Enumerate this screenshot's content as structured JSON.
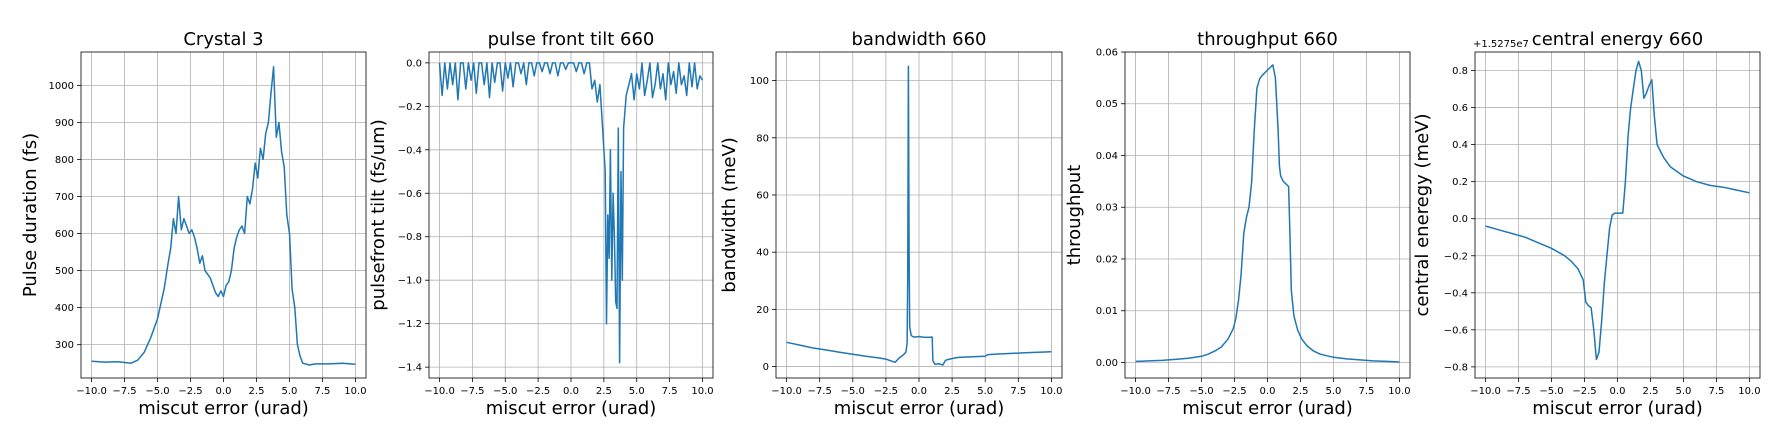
{
  "chart_data": [
    {
      "type": "line",
      "title": "Crystal 3",
      "xlabel": "miscut error (urad)",
      "ylabel": "Pulse duration (fs)",
      "xlim": [
        -10.8,
        10.8
      ],
      "ylim": [
        210,
        1090
      ],
      "xticks": [
        -10.0,
        -7.5,
        -5.0,
        -2.5,
        0.0,
        2.5,
        5.0,
        7.5,
        10.0
      ],
      "xtick_labels": [
        "−10.0",
        "−7.5",
        "−5.0",
        "−2.5",
        "0.0",
        "2.5",
        "5.0",
        "7.5",
        "10.0"
      ],
      "yticks": [
        300,
        400,
        500,
        600,
        700,
        800,
        900,
        1000
      ],
      "ytick_labels": [
        "300",
        "400",
        "500",
        "600",
        "700",
        "800",
        "900",
        "1000"
      ],
      "grid": true,
      "color": "#1f77b4",
      "series": [
        {
          "x": [
            -10,
            -9,
            -8,
            -7,
            -6.5,
            -6,
            -5.5,
            -5,
            -4.5,
            -4.2,
            -4,
            -3.8,
            -3.6,
            -3.4,
            -3.2,
            -3,
            -2.8,
            -2.6,
            -2.4,
            -2.2,
            -2,
            -1.8,
            -1.6,
            -1.4,
            -1.2,
            -1,
            -0.8,
            -0.6,
            -0.4,
            -0.2,
            0,
            0.2,
            0.4,
            0.6,
            0.8,
            1,
            1.2,
            1.4,
            1.6,
            1.8,
            2,
            2.2,
            2.4,
            2.6,
            2.8,
            3,
            3.2,
            3.4,
            3.6,
            3.8,
            3.9,
            4,
            4.2,
            4.4,
            4.6,
            4.8,
            5,
            5.2,
            5.4,
            5.6,
            5.8,
            6,
            6.5,
            7,
            8,
            9,
            10
          ],
          "y": [
            255,
            253,
            254,
            250,
            258,
            280,
            320,
            370,
            450,
            520,
            560,
            640,
            600,
            700,
            610,
            640,
            620,
            600,
            610,
            590,
            560,
            520,
            540,
            500,
            490,
            480,
            460,
            440,
            430,
            445,
            430,
            460,
            470,
            500,
            560,
            590,
            610,
            620,
            600,
            700,
            680,
            720,
            790,
            750,
            830,
            800,
            870,
            900,
            980,
            1050,
            950,
            860,
            900,
            820,
            780,
            650,
            600,
            450,
            400,
            300,
            270,
            250,
            245,
            248,
            248,
            250,
            247
          ]
        }
      ]
    },
    {
      "type": "line",
      "title": "pulse front tilt 660",
      "xlabel": "miscut error (urad)",
      "ylabel": "pulsefront tilt (fs/um)",
      "xlim": [
        -10.8,
        10.8
      ],
      "ylim": [
        -1.45,
        0.05
      ],
      "xticks": [
        -10.0,
        -7.5,
        -5.0,
        -2.5,
        0.0,
        2.5,
        5.0,
        7.5,
        10.0
      ],
      "xtick_labels": [
        "−10.0",
        "−7.5",
        "−5.0",
        "−2.5",
        "0.0",
        "2.5",
        "5.0",
        "7.5",
        "10.0"
      ],
      "yticks": [
        0.0,
        -0.2,
        -0.4,
        -0.6,
        -0.8,
        -1.0,
        -1.2,
        -1.4
      ],
      "ytick_labels": [
        "0.0",
        "−0.2",
        "−0.4",
        "−0.6",
        "−0.8",
        "−1.0",
        "−1.2",
        "−1.4"
      ],
      "grid": true,
      "color": "#1f77b4",
      "series": [
        {
          "x": [
            -10,
            -9.8,
            -9.6,
            -9.4,
            -9.2,
            -9,
            -8.8,
            -8.6,
            -8.4,
            -8.2,
            -8,
            -7.8,
            -7.6,
            -7.4,
            -7.2,
            -7,
            -6.8,
            -6.6,
            -6.4,
            -6.2,
            -6,
            -5.8,
            -5.6,
            -5.4,
            -5.2,
            -5,
            -4.8,
            -4.6,
            -4.4,
            -4.2,
            -4,
            -3.8,
            -3.6,
            -3.4,
            -3.2,
            -3,
            -2.8,
            -2.6,
            -2.4,
            -2.2,
            -2,
            -1.8,
            -1.6,
            -1.4,
            -1.2,
            -1,
            -0.8,
            -0.6,
            -0.4,
            -0.2,
            0,
            0.2,
            0.4,
            0.6,
            0.8,
            1,
            1.2,
            1.4,
            1.6,
            1.8,
            2,
            2.2,
            2.4,
            2.6,
            2.7,
            2.8,
            2.9,
            3,
            3.1,
            3.2,
            3.3,
            3.4,
            3.5,
            3.6,
            3.7,
            3.8,
            3.9,
            4,
            4.2,
            4.4,
            4.6,
            4.8,
            5,
            5.2,
            5.4,
            5.6,
            5.8,
            6,
            6.2,
            6.4,
            6.6,
            6.8,
            7,
            7.2,
            7.4,
            7.6,
            7.8,
            8,
            8.2,
            8.4,
            8.6,
            8.8,
            9,
            9.2,
            9.4,
            9.6,
            9.8,
            10
          ],
          "y": [
            0,
            -0.15,
            0,
            -0.12,
            0,
            -0.1,
            0,
            -0.17,
            0,
            0,
            -0.12,
            0,
            -0.08,
            0,
            -0.14,
            0,
            0,
            -0.1,
            0,
            -0.16,
            0,
            -0.09,
            0,
            0,
            -0.13,
            0,
            -0.07,
            0,
            -0.11,
            0,
            0,
            -0.05,
            0,
            -0.1,
            0,
            0,
            -0.06,
            0,
            0,
            -0.04,
            0,
            0,
            -0.05,
            0,
            0,
            -0.06,
            0,
            0,
            -0.03,
            0,
            0,
            0,
            -0.04,
            0,
            0,
            -0.05,
            0,
            0,
            -0.12,
            -0.08,
            -0.18,
            -0.1,
            -0.3,
            -0.5,
            -1.2,
            -0.7,
            -0.9,
            -0.4,
            -1.0,
            -0.6,
            -0.8,
            -1.1,
            -1.13,
            -0.3,
            -1.38,
            -0.5,
            -1.0,
            -0.3,
            -0.15,
            -0.1,
            -0.05,
            -0.17,
            -0.05,
            -0.12,
            0,
            -0.15,
            -0.08,
            0,
            -0.16,
            -0.1,
            0,
            -0.12,
            -0.05,
            -0.17,
            0,
            -0.1,
            -0.04,
            -0.14,
            0,
            -0.1,
            -0.06,
            -0.15,
            0,
            -0.11,
            0,
            -0.12,
            -0.06,
            -0.08
          ]
        }
      ]
    },
    {
      "type": "line",
      "title": "bandwidth 660",
      "xlabel": "miscut error (urad)",
      "ylabel": "bandwidth (meV)",
      "xlim": [
        -10.8,
        10.8
      ],
      "ylim": [
        -4,
        110
      ],
      "xticks": [
        -10.0,
        -7.5,
        -5.0,
        -2.5,
        0.0,
        2.5,
        5.0,
        7.5,
        10.0
      ],
      "xtick_labels": [
        "−10.0",
        "−7.5",
        "−5.0",
        "−2.5",
        "0.0",
        "2.5",
        "5.0",
        "7.5",
        "10.0"
      ],
      "yticks": [
        0,
        20,
        40,
        60,
        80,
        100
      ],
      "ytick_labels": [
        "0",
        "20",
        "40",
        "60",
        "80",
        "100"
      ],
      "grid": true,
      "color": "#1f77b4",
      "series": [
        {
          "x": [
            -10,
            -9,
            -8,
            -7,
            -6,
            -5,
            -4,
            -3,
            -2.5,
            -2,
            -1.8,
            -1.5,
            -1.2,
            -1,
            -0.9,
            -0.85,
            -0.8,
            -0.75,
            -0.7,
            -0.6,
            -0.5,
            -0.3,
            0,
            0.3,
            0.6,
            1,
            1.05,
            1.2,
            1.5,
            1.8,
            2,
            2.3,
            2.6,
            3,
            4,
            5,
            5.2,
            6,
            7,
            8,
            9,
            10
          ],
          "y": [
            8.5,
            7.5,
            6.5,
            5.8,
            5,
            4.3,
            3.6,
            3,
            2.6,
            1.8,
            1.5,
            3,
            4,
            5,
            8,
            30,
            105,
            40,
            14,
            11,
            10.5,
            10.3,
            10.5,
            10.3,
            10.2,
            10.3,
            2,
            0.8,
            1,
            0.5,
            2.2,
            2.6,
            2.9,
            3.2,
            3.4,
            3.6,
            4.2,
            4.4,
            4.6,
            4.8,
            5,
            5.2
          ]
        }
      ]
    },
    {
      "type": "line",
      "title": "throughput 660",
      "xlabel": "miscut error (urad)",
      "ylabel": "throughput",
      "xlim": [
        -10.8,
        10.8
      ],
      "ylim": [
        -0.003,
        0.06
      ],
      "xticks": [
        -10.0,
        -7.5,
        -5.0,
        -2.5,
        0.0,
        2.5,
        5.0,
        7.5,
        10.0
      ],
      "xtick_labels": [
        "−10.0",
        "−7.5",
        "−5.0",
        "−2.5",
        "0.0",
        "2.5",
        "5.0",
        "7.5",
        "10.0"
      ],
      "yticks": [
        0.0,
        0.01,
        0.02,
        0.03,
        0.04,
        0.05,
        0.06
      ],
      "ytick_labels": [
        "0.00",
        "0.01",
        "0.02",
        "0.03",
        "0.04",
        "0.05",
        "0.06"
      ],
      "grid": true,
      "color": "#1f77b4",
      "series": [
        {
          "x": [
            -10,
            -9,
            -8,
            -7,
            -6,
            -5,
            -4.5,
            -4,
            -3.5,
            -3,
            -2.6,
            -2.4,
            -2.2,
            -2,
            -1.8,
            -1.6,
            -1.4,
            -1.2,
            -1,
            -0.8,
            -0.6,
            -0.4,
            -0.2,
            0,
            0.2,
            0.4,
            0.6,
            0.8,
            0.9,
            1,
            1.2,
            1.4,
            1.6,
            1.7,
            1.8,
            2,
            2.3,
            2.6,
            3,
            3.5,
            4,
            5,
            6,
            7,
            8,
            9,
            10
          ],
          "y": [
            0.0002,
            0.0003,
            0.0004,
            0.0006,
            0.0008,
            0.0012,
            0.0016,
            0.0022,
            0.003,
            0.0045,
            0.0065,
            0.0085,
            0.012,
            0.017,
            0.025,
            0.028,
            0.03,
            0.035,
            0.045,
            0.053,
            0.0548,
            0.0555,
            0.056,
            0.0565,
            0.057,
            0.0575,
            0.055,
            0.045,
            0.038,
            0.036,
            0.035,
            0.0345,
            0.034,
            0.025,
            0.014,
            0.009,
            0.0062,
            0.0045,
            0.0032,
            0.0022,
            0.0016,
            0.001,
            0.0007,
            0.0005,
            0.0003,
            0.0002,
            0.0001
          ]
        }
      ]
    },
    {
      "type": "line",
      "title": "central energy 660",
      "xlabel": "miscut error (urad)",
      "ylabel": "central eneregy (meV)",
      "offset_label": "+1.5275e7",
      "xlim": [
        -10.8,
        10.8
      ],
      "ylim": [
        -0.86,
        0.9
      ],
      "xticks": [
        -10.0,
        -7.5,
        -5.0,
        -2.5,
        0.0,
        2.5,
        5.0,
        7.5,
        10.0
      ],
      "xtick_labels": [
        "−10.0",
        "−7.5",
        "−5.0",
        "−2.5",
        "0.0",
        "2.5",
        "5.0",
        "7.5",
        "10.0"
      ],
      "yticks": [
        0.8,
        0.6,
        0.4,
        0.2,
        0.0,
        -0.2,
        -0.4,
        -0.6,
        -0.8
      ],
      "ytick_labels": [
        "0.8",
        "0.6",
        "0.4",
        "0.2",
        "0.0",
        "−0.2",
        "−0.4",
        "−0.6",
        "−0.8"
      ],
      "grid": true,
      "color": "#1f77b4",
      "series": [
        {
          "x": [
            -10,
            -9,
            -8,
            -7,
            -6,
            -5,
            -4,
            -3.5,
            -3,
            -2.6,
            -2.4,
            -2.2,
            -2,
            -1.8,
            -1.6,
            -1.4,
            -1.2,
            -1,
            -0.8,
            -0.6,
            -0.4,
            -0.2,
            0,
            0.2,
            0.4,
            0.6,
            0.8,
            1,
            1.2,
            1.4,
            1.6,
            1.8,
            2,
            2.2,
            2.4,
            2.6,
            2.8,
            3,
            3.5,
            4,
            5,
            6,
            7,
            8,
            9,
            10
          ],
          "y": [
            -0.04,
            -0.06,
            -0.08,
            -0.1,
            -0.13,
            -0.16,
            -0.2,
            -0.23,
            -0.27,
            -0.33,
            -0.45,
            -0.47,
            -0.48,
            -0.6,
            -0.76,
            -0.72,
            -0.55,
            -0.35,
            -0.2,
            -0.05,
            0.02,
            0.03,
            0.03,
            0.03,
            0.03,
            0.2,
            0.45,
            0.6,
            0.7,
            0.8,
            0.85,
            0.8,
            0.65,
            0.68,
            0.72,
            0.75,
            0.55,
            0.4,
            0.33,
            0.28,
            0.23,
            0.2,
            0.18,
            0.17,
            0.155,
            0.14
          ]
        }
      ]
    }
  ]
}
